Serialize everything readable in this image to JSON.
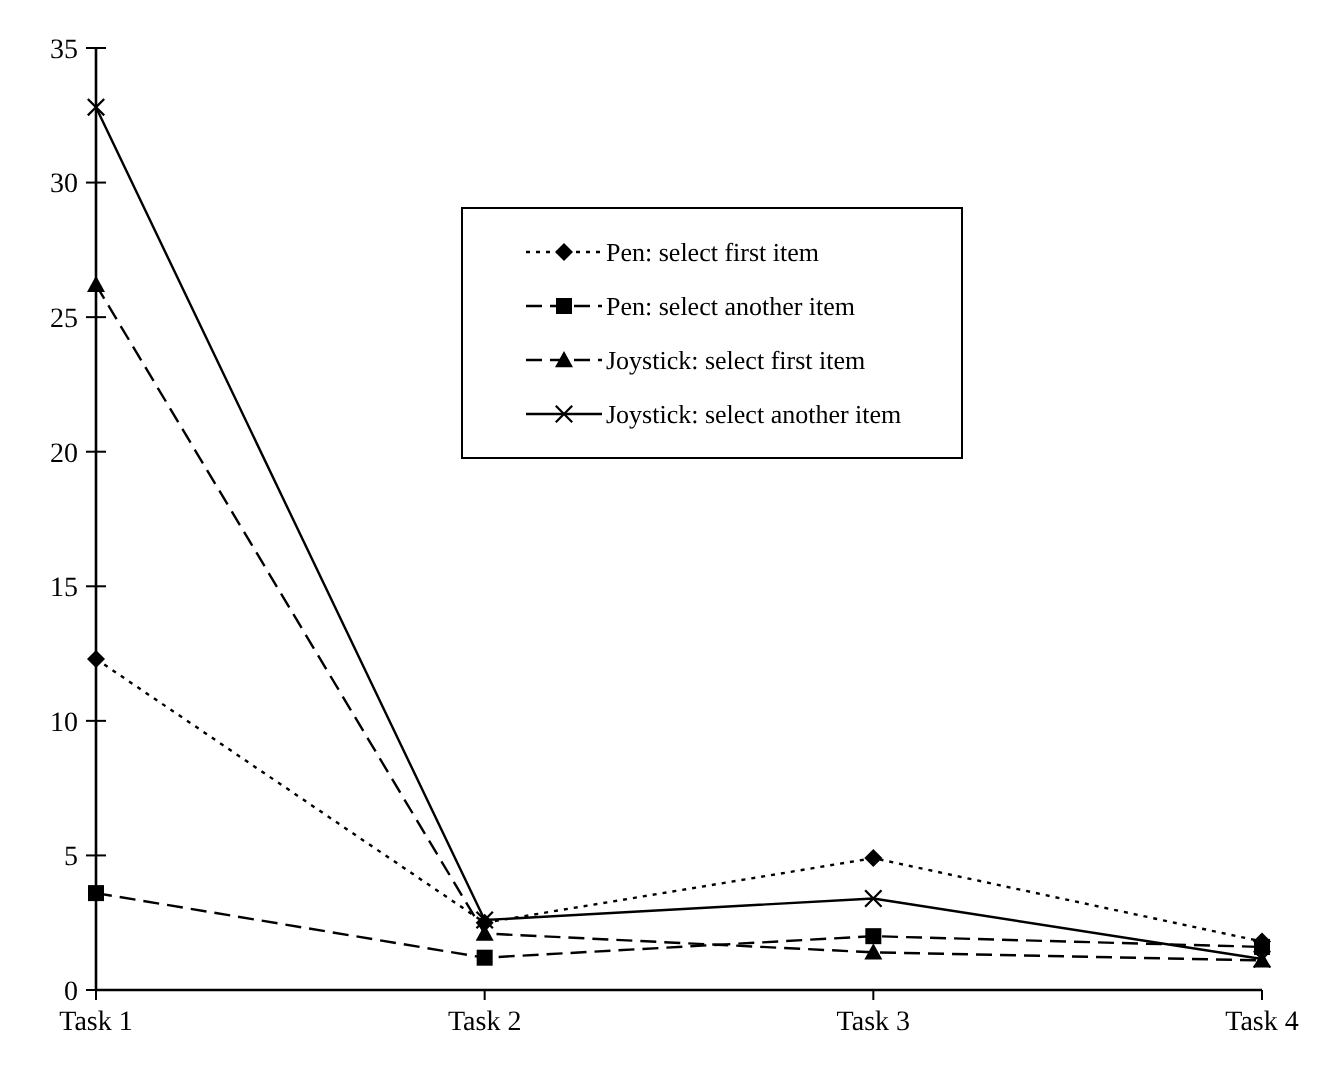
{
  "chart_data": {
    "type": "line",
    "categories": [
      "Task 1",
      "Task 2",
      "Task 3",
      "Task 4"
    ],
    "series": [
      {
        "name": "Pen: select first item",
        "color": "#000000",
        "marker": "diamond",
        "line_style": "dotted",
        "values": [
          12.3,
          2.5,
          4.9,
          1.8
        ]
      },
      {
        "name": "Pen: select another item",
        "color": "#000000",
        "marker": "square",
        "line_style": "dashed",
        "values": [
          3.6,
          1.2,
          2.0,
          1.6
        ]
      },
      {
        "name": "Joystick: select first item",
        "color": "#000000",
        "marker": "triangle",
        "line_style": "dashed",
        "values": [
          26.2,
          2.1,
          1.4,
          1.1
        ]
      },
      {
        "name": "Joystick: select another item",
        "color": "#000000",
        "marker": "cross",
        "line_style": "solid",
        "values": [
          32.8,
          2.6,
          3.4,
          1.15
        ]
      }
    ],
    "ylim": [
      0,
      35
    ],
    "yticks": [
      0,
      5,
      10,
      15,
      20,
      25,
      30,
      35
    ],
    "grid": false,
    "legend": "top right"
  }
}
